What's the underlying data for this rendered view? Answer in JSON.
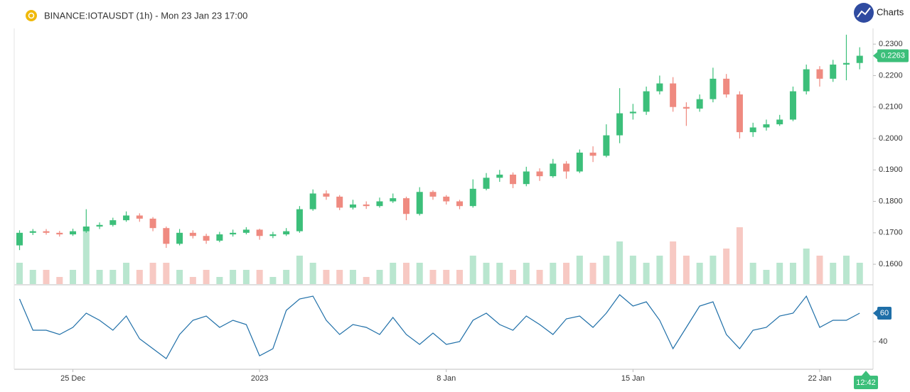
{
  "chart_data": [
    {
      "type": "candlestick",
      "title": "BINANCE:IOTAUSDT (1h) - Mon 23 Jan 23 17:00",
      "brand": "Charts",
      "time_label": "12:42",
      "categories": [
        null,
        null,
        null,
        null,
        null,
        null,
        null,
        null,
        null,
        null,
        null,
        null,
        null,
        null,
        null,
        null,
        null,
        null,
        null,
        null,
        null,
        null,
        null,
        null,
        null,
        null,
        null,
        null,
        null,
        null,
        null,
        null,
        null,
        null,
        null,
        null,
        null,
        null,
        null,
        null,
        null,
        null,
        null,
        null,
        null,
        null,
        null,
        null,
        null,
        null,
        null,
        null,
        null,
        null,
        null,
        null,
        null,
        null,
        null,
        null,
        null,
        null,
        null,
        null
      ],
      "open": [
        0.166,
        0.17,
        0.1705,
        0.17,
        0.1695,
        0.1705,
        0.172,
        0.1725,
        0.174,
        0.1755,
        0.1745,
        0.1715,
        0.1665,
        0.17,
        0.169,
        0.1675,
        0.1695,
        0.17,
        0.171,
        0.169,
        0.1695,
        0.1705,
        0.1775,
        0.1825,
        0.1815,
        0.178,
        0.179,
        0.1785,
        0.18,
        0.181,
        0.176,
        0.183,
        0.1815,
        0.18,
        0.1785,
        0.184,
        0.1875,
        0.1885,
        0.1855,
        0.1895,
        0.188,
        0.192,
        0.1895,
        0.1955,
        0.1945,
        0.201,
        0.208,
        0.2085,
        0.215,
        0.2175,
        0.21,
        0.2095,
        0.2125,
        0.219,
        0.214,
        0.202,
        0.2035,
        0.2045,
        0.206,
        0.215,
        0.222,
        0.219,
        0.2235,
        0.224
      ],
      "high": [
        0.1708,
        0.1712,
        0.1712,
        0.1706,
        0.1713,
        0.1775,
        0.1733,
        0.1748,
        0.1768,
        0.1762,
        0.175,
        0.172,
        0.1712,
        0.1708,
        0.1697,
        0.1703,
        0.171,
        0.1718,
        0.1713,
        0.1703,
        0.1715,
        0.1785,
        0.1838,
        0.1835,
        0.182,
        0.1805,
        0.18,
        0.1812,
        0.1825,
        0.1815,
        0.1845,
        0.1835,
        0.182,
        0.1805,
        0.187,
        0.189,
        0.19,
        0.1892,
        0.191,
        0.1905,
        0.1935,
        0.1928,
        0.1965,
        0.1975,
        0.2045,
        0.216,
        0.211,
        0.2165,
        0.22,
        0.2195,
        0.2115,
        0.214,
        0.2225,
        0.2205,
        0.215,
        0.205,
        0.206,
        0.2075,
        0.2165,
        0.2235,
        0.223,
        0.225,
        0.233,
        0.229
      ],
      "low": [
        0.1645,
        0.1693,
        0.1694,
        0.1688,
        0.169,
        0.17,
        0.1712,
        0.172,
        0.1735,
        0.1735,
        0.1705,
        0.1652,
        0.166,
        0.1682,
        0.1665,
        0.167,
        0.1688,
        0.1695,
        0.1678,
        0.1683,
        0.169,
        0.17,
        0.177,
        0.1805,
        0.1772,
        0.1774,
        0.1776,
        0.178,
        0.1795,
        0.174,
        0.1755,
        0.1805,
        0.179,
        0.1775,
        0.178,
        0.1835,
        0.1862,
        0.1842,
        0.1848,
        0.1865,
        0.1875,
        0.1872,
        0.189,
        0.1925,
        0.194,
        0.1985,
        0.206,
        0.2075,
        0.214,
        0.2085,
        0.204,
        0.2085,
        0.2115,
        0.213,
        0.2,
        0.2005,
        0.2025,
        0.204,
        0.2055,
        0.214,
        0.2165,
        0.218,
        0.2185,
        0.222
      ],
      "close": [
        0.17,
        0.1705,
        0.17,
        0.1695,
        0.1705,
        0.172,
        0.1725,
        0.174,
        0.1755,
        0.1745,
        0.1715,
        0.1665,
        0.17,
        0.169,
        0.1675,
        0.1695,
        0.17,
        0.171,
        0.169,
        0.1695,
        0.1705,
        0.1775,
        0.1825,
        0.1815,
        0.178,
        0.179,
        0.1785,
        0.18,
        0.181,
        0.176,
        0.183,
        0.1815,
        0.18,
        0.1785,
        0.184,
        0.1875,
        0.1885,
        0.1855,
        0.1895,
        0.188,
        0.192,
        0.1895,
        0.1955,
        0.1945,
        0.201,
        0.208,
        0.2085,
        0.215,
        0.2175,
        0.21,
        0.2095,
        0.2125,
        0.219,
        0.214,
        0.202,
        0.2035,
        0.2045,
        0.206,
        0.215,
        0.222,
        0.219,
        0.2235,
        0.224,
        0.2263
      ],
      "volume": [
        3,
        2,
        2,
        1,
        2,
        8,
        2,
        2,
        3,
        2,
        3,
        3,
        2,
        1,
        2,
        1,
        2,
        2,
        2,
        1,
        2,
        4,
        3,
        2,
        2,
        2,
        1,
        2,
        3,
        3,
        3,
        2,
        2,
        2,
        4,
        3,
        3,
        2,
        3,
        2,
        3,
        3,
        4,
        3,
        4,
        6,
        4,
        3,
        4,
        6,
        4,
        3,
        4,
        5,
        8,
        3,
        2,
        3,
        3,
        5,
        4,
        3,
        4,
        3
      ],
      "up_color": "#3cbf7a",
      "down_color": "#ef8a80",
      "up_volume_color": "#b9e6cf",
      "down_volume_color": "#f7c9c3",
      "last_label": {
        "value": 0.2263,
        "label": "0.2263"
      },
      "xlim": [
        -0.4,
        64
      ],
      "xticks": [
        {
          "value": 4,
          "label": "25 Dec"
        },
        {
          "value": 18,
          "label": "2023"
        },
        {
          "value": 32,
          "label": "8 Jan"
        },
        {
          "value": 46,
          "label": "15 Jan"
        },
        {
          "value": 60,
          "label": "22 Jan"
        }
      ],
      "ylim": [
        0.1537,
        0.235
      ],
      "yticks": [
        {
          "value": 0.16,
          "label": "0.1600"
        },
        {
          "value": 0.17,
          "label": "0.1700"
        },
        {
          "value": 0.18,
          "label": "0.1800"
        },
        {
          "value": 0.19,
          "label": "0.1900"
        },
        {
          "value": 0.2,
          "label": "0.2000"
        },
        {
          "value": 0.21,
          "label": "0.2100"
        },
        {
          "value": 0.22,
          "label": "0.2200"
        },
        {
          "value": 0.23,
          "label": "0.2300"
        }
      ]
    },
    {
      "type": "line",
      "color": "#1f6fa8",
      "values": [
        70,
        48,
        48,
        45,
        50,
        60,
        55,
        48,
        58,
        42,
        35,
        28,
        45,
        55,
        58,
        50,
        55,
        52,
        30,
        35,
        62,
        70,
        72,
        55,
        45,
        52,
        50,
        45,
        57,
        45,
        38,
        46,
        38,
        40,
        55,
        60,
        52,
        48,
        58,
        52,
        45,
        56,
        58,
        50,
        60,
        73,
        65,
        68,
        55,
        35,
        50,
        65,
        68,
        45,
        35,
        48,
        50,
        58,
        60,
        72,
        50,
        55,
        55,
        60
      ],
      "last_label": {
        "value": 60,
        "label": "60"
      },
      "ylim": [
        20.5,
        79
      ],
      "yticks": [
        40
      ]
    }
  ]
}
